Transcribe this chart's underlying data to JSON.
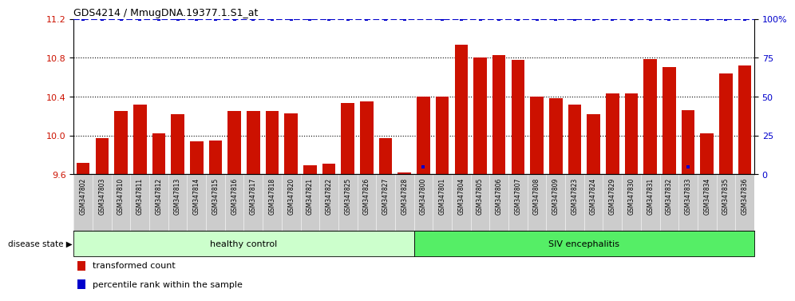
{
  "title": "GDS4214 / MmugDNA.19377.1.S1_at",
  "samples": [
    "GSM347802",
    "GSM347803",
    "GSM347810",
    "GSM347811",
    "GSM347812",
    "GSM347813",
    "GSM347814",
    "GSM347815",
    "GSM347816",
    "GSM347817",
    "GSM347818",
    "GSM347820",
    "GSM347821",
    "GSM347822",
    "GSM347825",
    "GSM347826",
    "GSM347827",
    "GSM347828",
    "GSM347800",
    "GSM347801",
    "GSM347804",
    "GSM347805",
    "GSM347806",
    "GSM347807",
    "GSM347808",
    "GSM347809",
    "GSM347823",
    "GSM347824",
    "GSM347829",
    "GSM347830",
    "GSM347831",
    "GSM347832",
    "GSM347833",
    "GSM347834",
    "GSM347835",
    "GSM347836"
  ],
  "values": [
    9.72,
    9.97,
    10.25,
    10.32,
    10.02,
    10.22,
    9.94,
    9.95,
    10.25,
    10.25,
    10.25,
    10.23,
    9.69,
    9.71,
    10.33,
    10.35,
    9.97,
    9.62,
    10.4,
    10.4,
    10.93,
    10.8,
    10.83,
    10.78,
    10.4,
    10.38,
    10.32,
    10.22,
    10.43,
    10.43,
    10.79,
    10.7,
    10.26,
    10.02,
    10.64,
    10.72
  ],
  "percentile_values": [
    100,
    100,
    100,
    100,
    100,
    100,
    100,
    100,
    100,
    100,
    100,
    100,
    100,
    100,
    100,
    100,
    100,
    100,
    5,
    100,
    100,
    100,
    100,
    100,
    100,
    100,
    100,
    100,
    100,
    100,
    100,
    100,
    5,
    100,
    100,
    100
  ],
  "healthy_count": 18,
  "siv_count": 18,
  "ylim_left": [
    9.6,
    11.2
  ],
  "ylim_right": [
    0,
    100
  ],
  "yticks_left": [
    9.6,
    10.0,
    10.4,
    10.8,
    11.2
  ],
  "yticks_right": [
    0,
    25,
    50,
    75,
    100
  ],
  "bar_color": "#cc1100",
  "dot_color": "#0000cc",
  "healthy_color": "#ccffcc",
  "siv_color": "#55ee66",
  "gray_color": "#cccccc",
  "dotted_grid_values": [
    10.0,
    10.4,
    10.8
  ]
}
